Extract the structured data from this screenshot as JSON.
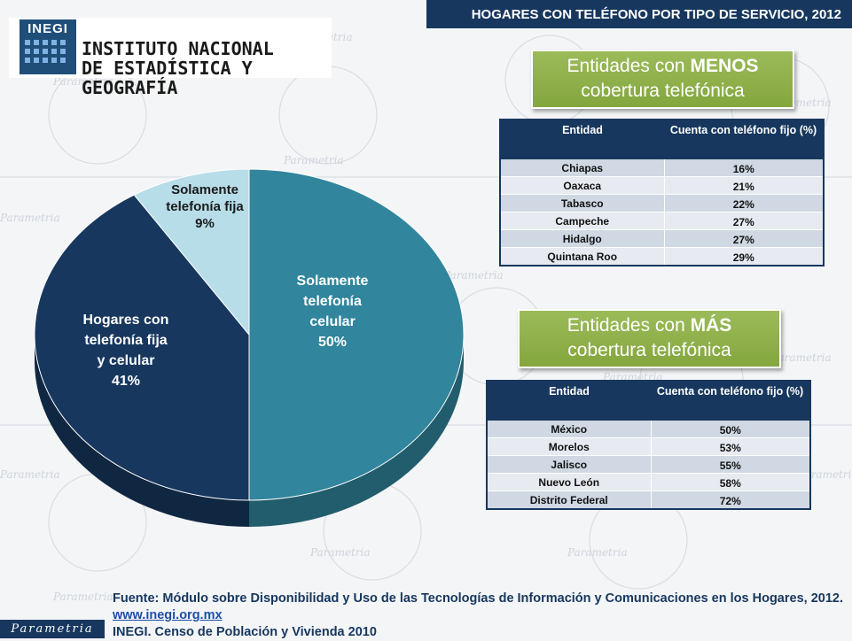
{
  "header": {
    "title": "HOGARES CON TELÉFONO POR TIPO DE SERVICIO, 2012"
  },
  "logo": {
    "mark": "INEGI",
    "line1": "INSTITUTO NACIONAL",
    "line2": "DE ESTADÍSTICA Y GEOGRAFÍA"
  },
  "watermark": "Parametria",
  "chart_data": {
    "type": "pie",
    "title": "",
    "slices": [
      {
        "label_lines": [
          "Solamente",
          "telefonía",
          "celular"
        ],
        "value": 50,
        "value_label": "50%",
        "color": "#31859c"
      },
      {
        "label_lines": [
          "Hogares con",
          "telefonía fija",
          "y celular"
        ],
        "value": 41,
        "value_label": "41%",
        "color": "#17375e"
      },
      {
        "label_lines": [
          "Solamente",
          "telefonía fija"
        ],
        "value": 9,
        "value_label": "9%",
        "color": "#b7dde8"
      }
    ]
  },
  "menos": {
    "title_pre": "Entidades con ",
    "title_bold": "MENOS",
    "title_line2": "cobertura telefónica",
    "col1": "Entidad",
    "col2": "Cuenta con teléfono fijo (%)",
    "rows": [
      {
        "entidad": "Chiapas",
        "valor": "16%"
      },
      {
        "entidad": "Oaxaca",
        "valor": "21%"
      },
      {
        "entidad": "Tabasco",
        "valor": "22%"
      },
      {
        "entidad": "Campeche",
        "valor": "27%"
      },
      {
        "entidad": "Hidalgo",
        "valor": "27%"
      },
      {
        "entidad": "Quintana Roo",
        "valor": "29%"
      }
    ]
  },
  "mas": {
    "title_pre": "Entidades con ",
    "title_bold": "MÁS",
    "title_line2": "cobertura telefónica",
    "col1": "Entidad",
    "col2": "Cuenta con teléfono fijo (%)",
    "rows": [
      {
        "entidad": "México",
        "valor": "50%"
      },
      {
        "entidad": "Morelos",
        "valor": "53%"
      },
      {
        "entidad": "Jalisco",
        "valor": "55%"
      },
      {
        "entidad": "Nuevo León",
        "valor": "58%"
      },
      {
        "entidad": "Distrito Federal",
        "valor": "72%"
      }
    ]
  },
  "footer": {
    "source": "Fuente: Módulo sobre Disponibilidad y Uso de las Tecnologías de Información y Comunicaciones en los Hogares, 2012.",
    "link": "www.inegi.org.mx",
    "census": "INEGI. Censo de Población y Vivienda 2010"
  },
  "badge": "Parametria"
}
